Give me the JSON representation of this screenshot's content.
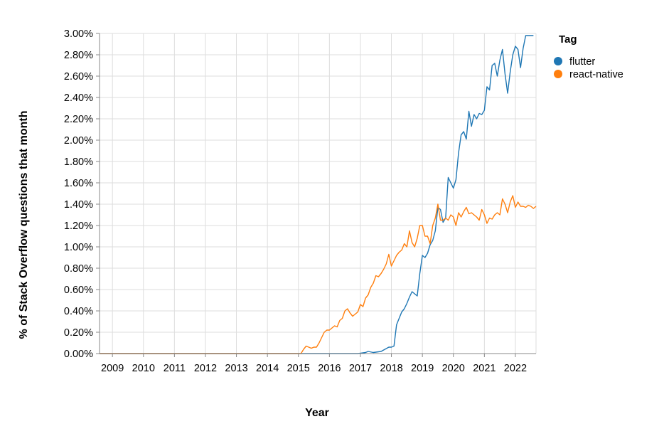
{
  "chart_data": {
    "type": "line",
    "xlabel": "Year",
    "ylabel": "% of Stack Overflow questions that month",
    "y_unit": "percent",
    "ylim": [
      0,
      3.0
    ],
    "xlim": [
      "2008-08",
      "2022-09"
    ],
    "y_ticks": [
      "0.00%",
      "0.20%",
      "0.40%",
      "0.60%",
      "0.80%",
      "1.00%",
      "1.20%",
      "1.40%",
      "1.60%",
      "1.80%",
      "2.00%",
      "2.20%",
      "2.40%",
      "2.60%",
      "2.80%",
      "3.00%"
    ],
    "x_ticks": [
      "2009",
      "2010",
      "2011",
      "2012",
      "2013",
      "2014",
      "2015",
      "2016",
      "2017",
      "2018",
      "2019",
      "2020",
      "2021",
      "2022"
    ],
    "grid": true,
    "legend": {
      "title": "Tag",
      "position": "top-right"
    },
    "series": [
      {
        "name": "flutter",
        "color": "#1f77b4",
        "x": [
          "2008-08",
          "2015-01",
          "2016-01",
          "2016-09",
          "2016-12",
          "2017-03",
          "2017-04",
          "2017-06",
          "2017-09",
          "2017-12",
          "2018-01",
          "2018-02",
          "2018-03",
          "2018-04",
          "2018-05",
          "2018-06",
          "2018-07",
          "2018-08",
          "2018-09",
          "2018-10",
          "2018-11",
          "2018-12",
          "2019-01",
          "2019-02",
          "2019-03",
          "2019-04",
          "2019-05",
          "2019-06",
          "2019-07",
          "2019-08",
          "2019-09",
          "2019-10",
          "2019-11",
          "2019-12",
          "2020-01",
          "2020-02",
          "2020-03",
          "2020-04",
          "2020-05",
          "2020-06",
          "2020-07",
          "2020-08",
          "2020-09",
          "2020-10",
          "2020-11",
          "2020-12",
          "2021-01",
          "2021-02",
          "2021-03",
          "2021-04",
          "2021-05",
          "2021-06",
          "2021-07",
          "2021-08",
          "2021-09",
          "2021-10",
          "2021-11",
          "2021-12",
          "2022-01",
          "2022-02",
          "2022-03",
          "2022-04",
          "2022-05",
          "2022-06",
          "2022-07",
          "2022-08"
        ],
        "y": [
          0.0,
          0.0,
          0.0,
          0.0,
          0.0,
          0.01,
          0.02,
          0.01,
          0.02,
          0.06,
          0.06,
          0.07,
          0.27,
          0.33,
          0.39,
          0.42,
          0.47,
          0.53,
          0.58,
          0.56,
          0.54,
          0.75,
          0.92,
          0.9,
          0.94,
          1.02,
          1.06,
          1.15,
          1.37,
          1.35,
          1.23,
          1.27,
          1.65,
          1.6,
          1.55,
          1.63,
          1.88,
          2.05,
          2.08,
          2.01,
          2.27,
          2.13,
          2.24,
          2.2,
          2.25,
          2.24,
          2.28,
          2.5,
          2.47,
          2.7,
          2.72,
          2.6,
          2.75,
          2.85,
          2.62,
          2.44,
          2.64,
          2.8,
          2.88,
          2.85,
          2.68,
          2.86,
          2.98,
          2.98,
          2.98,
          2.98
        ]
      },
      {
        "name": "react-native",
        "color": "#ff7f0e",
        "x": [
          "2008-08",
          "2015-02",
          "2015-03",
          "2015-04",
          "2015-05",
          "2015-06",
          "2015-07",
          "2015-08",
          "2015-09",
          "2015-10",
          "2015-11",
          "2015-12",
          "2016-01",
          "2016-02",
          "2016-03",
          "2016-04",
          "2016-05",
          "2016-06",
          "2016-07",
          "2016-08",
          "2016-09",
          "2016-10",
          "2016-11",
          "2016-12",
          "2017-01",
          "2017-02",
          "2017-03",
          "2017-04",
          "2017-05",
          "2017-06",
          "2017-07",
          "2017-08",
          "2017-09",
          "2017-10",
          "2017-11",
          "2017-12",
          "2018-01",
          "2018-02",
          "2018-03",
          "2018-04",
          "2018-05",
          "2018-06",
          "2018-07",
          "2018-08",
          "2018-09",
          "2018-10",
          "2018-11",
          "2018-12",
          "2019-01",
          "2019-02",
          "2019-03",
          "2019-04",
          "2019-05",
          "2019-06",
          "2019-07",
          "2019-08",
          "2019-09",
          "2019-10",
          "2019-11",
          "2019-12",
          "2020-01",
          "2020-02",
          "2020-03",
          "2020-04",
          "2020-05",
          "2020-06",
          "2020-07",
          "2020-08",
          "2020-09",
          "2020-10",
          "2020-11",
          "2020-12",
          "2021-01",
          "2021-02",
          "2021-03",
          "2021-04",
          "2021-05",
          "2021-06",
          "2021-07",
          "2021-08",
          "2021-09",
          "2021-10",
          "2021-11",
          "2021-12",
          "2022-01",
          "2022-02",
          "2022-03",
          "2022-04",
          "2022-05",
          "2022-06",
          "2022-07",
          "2022-08",
          "2022-09"
        ],
        "y": [
          0.0,
          0.0,
          0.04,
          0.07,
          0.06,
          0.05,
          0.06,
          0.06,
          0.1,
          0.15,
          0.2,
          0.22,
          0.22,
          0.24,
          0.26,
          0.25,
          0.31,
          0.33,
          0.4,
          0.42,
          0.38,
          0.35,
          0.37,
          0.39,
          0.46,
          0.44,
          0.52,
          0.55,
          0.62,
          0.66,
          0.73,
          0.72,
          0.75,
          0.79,
          0.84,
          0.93,
          0.82,
          0.87,
          0.92,
          0.95,
          0.97,
          1.03,
          1.0,
          1.15,
          1.04,
          1.0,
          1.08,
          1.2,
          1.2,
          1.1,
          1.1,
          1.03,
          1.2,
          1.27,
          1.4,
          1.25,
          1.25,
          1.27,
          1.25,
          1.3,
          1.28,
          1.2,
          1.32,
          1.28,
          1.33,
          1.37,
          1.31,
          1.32,
          1.3,
          1.28,
          1.25,
          1.35,
          1.3,
          1.22,
          1.27,
          1.26,
          1.3,
          1.32,
          1.3,
          1.45,
          1.4,
          1.32,
          1.42,
          1.48,
          1.37,
          1.42,
          1.38,
          1.38,
          1.37,
          1.39,
          1.38,
          1.36,
          1.38
        ]
      }
    ]
  }
}
